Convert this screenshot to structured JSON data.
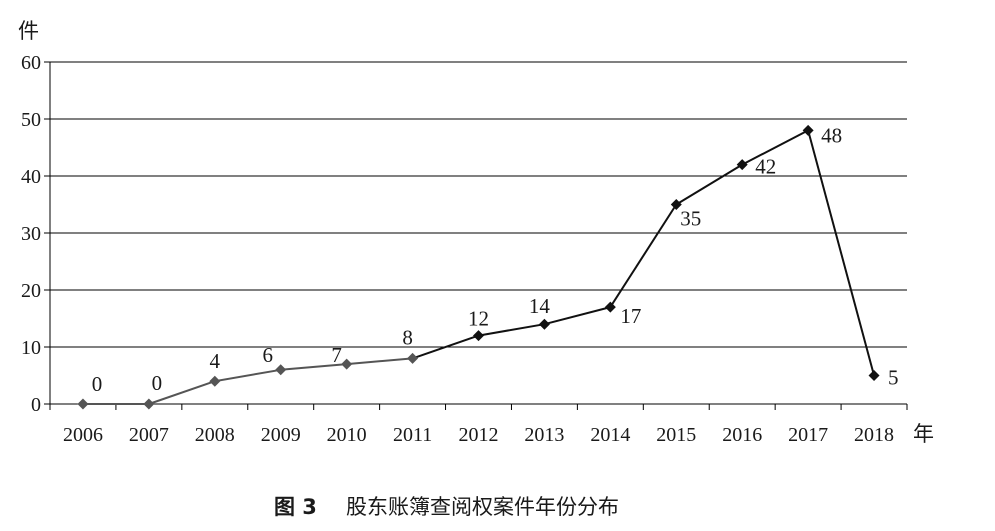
{
  "chart_data": {
    "type": "line",
    "categories": [
      "2006",
      "2007",
      "2008",
      "2009",
      "2010",
      "2011",
      "2012",
      "2013",
      "2014",
      "2015",
      "2016",
      "2017",
      "2018"
    ],
    "values": [
      0,
      0,
      4,
      6,
      7,
      8,
      12,
      14,
      17,
      35,
      42,
      48,
      5
    ],
    "data_labels": [
      "0",
      "0",
      "4",
      "6",
      "7",
      "8",
      "12",
      "14",
      "17",
      "35",
      "42",
      "48",
      "5"
    ],
    "y_ticks": [
      "0",
      "10",
      "20",
      "30",
      "40",
      "50",
      "60"
    ],
    "ylim": [
      0,
      60
    ],
    "y_unit": "件",
    "x_unit": "年",
    "grid": true,
    "marker": "diamond",
    "line_colors": {
      "early": "#555555",
      "late": "#111111"
    },
    "caption": {
      "number": "图 3",
      "text": "股东账簿查阅权案件年份分布"
    }
  }
}
